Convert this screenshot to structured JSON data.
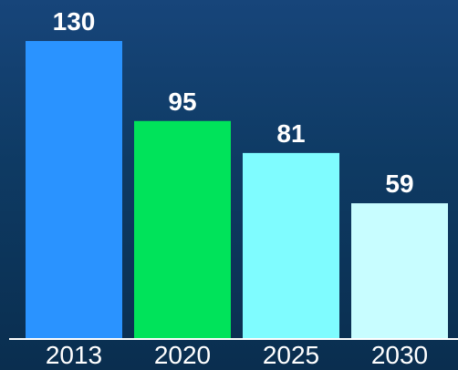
{
  "chart_data": {
    "type": "bar",
    "categories": [
      "2013",
      "2020",
      "2025",
      "2030"
    ],
    "values": [
      130,
      95,
      81,
      59
    ],
    "colors": [
      "#2a93ff",
      "#00e35a",
      "#7ffcff",
      "#c8fdff"
    ],
    "title": "",
    "xlabel": "",
    "ylabel": "",
    "ylim": [
      0,
      130
    ],
    "grid": false,
    "legend": "none"
  },
  "colors": {
    "background_top": "#17457a",
    "background_bottom": "#0a2e4f",
    "axis": "#ffffff",
    "text": "#ffffff"
  }
}
